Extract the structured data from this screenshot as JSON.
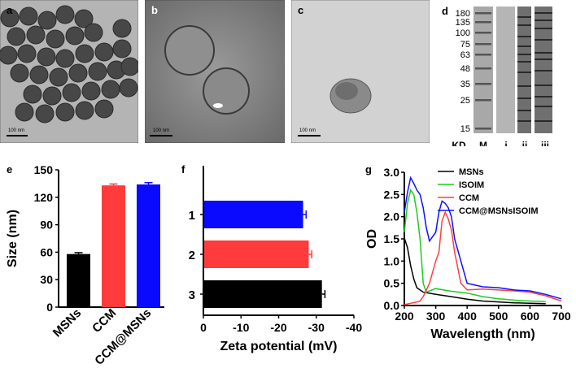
{
  "panels": {
    "a": {
      "letter": "a",
      "scale": "100 nm"
    },
    "b": {
      "letter": "b",
      "scale": "100 nm"
    },
    "c": {
      "letter": "c",
      "scale": "100 nm"
    },
    "d": {
      "letter": "d",
      "markers": [
        "180",
        "135",
        "100",
        "75",
        "63",
        "48",
        "35",
        "25",
        "15"
      ],
      "unit": "KD",
      "lanes": [
        "M",
        "i",
        "ii",
        "iii"
      ]
    },
    "e": {
      "letter": "e"
    },
    "f": {
      "letter": "f"
    },
    "g": {
      "letter": "g"
    }
  },
  "chart_data": [
    {
      "id": "e",
      "type": "bar",
      "categories": [
        "MSNs",
        "CCM",
        "CCM@MSNs"
      ],
      "values": [
        58,
        133,
        134
      ],
      "errors": [
        1.5,
        1.5,
        2
      ],
      "colors": [
        "#000000",
        "#ff3b3b",
        "#0a0aff"
      ],
      "ylabel": "Size (nm)",
      "ylim": [
        0,
        150
      ],
      "yticks": [
        "0",
        "30",
        "60",
        "90",
        "120",
        "150"
      ]
    },
    {
      "id": "f",
      "type": "bar",
      "orientation": "horizontal",
      "categories": [
        "1",
        "2",
        "3"
      ],
      "values": [
        -26.5,
        -28,
        -31.5
      ],
      "errors": [
        0.8,
        0.8,
        0.8
      ],
      "colors": [
        "#0a0aff",
        "#ff3b3b",
        "#000000"
      ],
      "xlabel": "Zeta potential (mV)",
      "xlim": [
        0,
        -40
      ],
      "xticks": [
        "0",
        "-10",
        "-20",
        "-30",
        "-40"
      ]
    },
    {
      "id": "g",
      "type": "line",
      "xlabel": "Wavelength (nm)",
      "ylabel": "OD",
      "xlim": [
        200,
        700
      ],
      "ylim": [
        0,
        3.0
      ],
      "xticks": [
        "200",
        "300",
        "400",
        "500",
        "600",
        "700"
      ],
      "yticks": [
        "0.0",
        "0.5",
        "1.0",
        "1.5",
        "2.0",
        "2.5",
        "3.0"
      ],
      "legend": "top-right",
      "series": [
        {
          "name": "MSNs",
          "color": "#000000",
          "x": [
            200,
            210,
            220,
            230,
            240,
            260,
            300,
            350,
            400,
            450,
            500,
            550,
            600,
            650
          ],
          "y": [
            1.52,
            1.3,
            0.9,
            0.6,
            0.4,
            0.3,
            0.25,
            0.2,
            0.14,
            0.1,
            0.08,
            0.06,
            0.05,
            0.04
          ]
        },
        {
          "name": "ISOIM",
          "color": "#1ecb1e",
          "x": [
            200,
            210,
            220,
            230,
            240,
            250,
            260,
            270,
            300,
            350,
            400,
            450,
            500,
            550,
            600,
            650
          ],
          "y": [
            1.65,
            2.3,
            2.6,
            2.5,
            2.1,
            1.5,
            0.5,
            0.3,
            0.38,
            0.32,
            0.28,
            0.2,
            0.15,
            0.12,
            0.1,
            0.09
          ]
        },
        {
          "name": "CCM",
          "color": "#ff4040",
          "x": [
            200,
            220,
            240,
            250,
            260,
            280,
            300,
            310,
            320,
            330,
            340,
            350,
            360,
            380,
            400,
            450,
            500,
            550,
            600,
            650,
            700
          ],
          "y": [
            0.02,
            0.05,
            0.08,
            0.1,
            0.2,
            0.5,
            1.0,
            1.2,
            1.9,
            2.1,
            1.95,
            1.7,
            1.2,
            0.5,
            0.35,
            0.37,
            0.35,
            0.33,
            0.3,
            0.22,
            0.1
          ]
        },
        {
          "name": "CCM@MSNsISOIM",
          "color": "#1010ff",
          "x": [
            200,
            210,
            220,
            230,
            240,
            250,
            260,
            270,
            280,
            300,
            310,
            320,
            330,
            340,
            350,
            360,
            380,
            400,
            450,
            500,
            550,
            600,
            650,
            700
          ],
          "y": [
            2.1,
            2.55,
            2.88,
            2.75,
            2.6,
            2.5,
            2.2,
            1.75,
            1.45,
            1.65,
            2.1,
            2.35,
            2.3,
            2.2,
            2.0,
            1.5,
            1.0,
            0.5,
            0.42,
            0.4,
            0.35,
            0.33,
            0.25,
            0.15
          ]
        }
      ]
    }
  ]
}
